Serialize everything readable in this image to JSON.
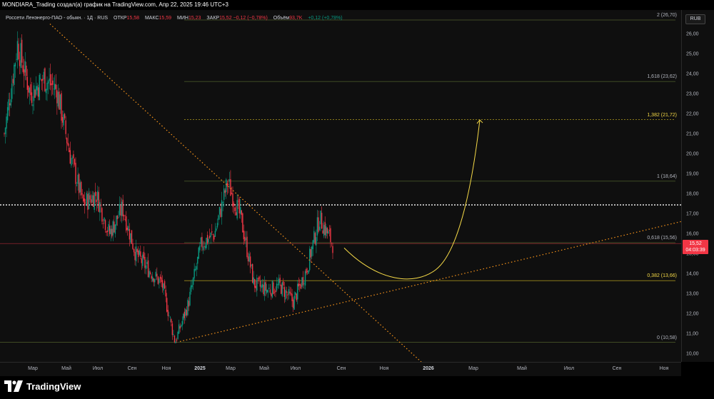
{
  "header": {
    "title": "MONDIARA_Trading создал(а) график на TradingView.com, Апр 22, 2025 19:46 UTC+3"
  },
  "legend": {
    "symbol": "Россети Ленэнерго-ПАО - обыкн. · 1Д · RUS",
    "open_label": "ОТКР",
    "open_value": "15,58",
    "high_label": "МАКС",
    "high_value": "15,59",
    "low_label": "МИН",
    "low_value": "15,23",
    "close_label": "ЗАКР",
    "close_value": "15,52",
    "change": "−0,12 (−0,78%)",
    "volume_label": "Объём",
    "volume_value": "93,7K",
    "volume_change": "+0,12 (+0,78%)"
  },
  "currency": "RUB",
  "price_badge": {
    "price": "15,52",
    "countdown": "04:03:39",
    "color": "#f23645"
  },
  "fib_levels": [
    {
      "label": "2 (26,70)",
      "price": 26.7,
      "highlight": false
    },
    {
      "label": "1,618 (23,62)",
      "price": 23.62,
      "highlight": false
    },
    {
      "label": "1,382 (21,72)",
      "price": 21.72,
      "highlight": true
    },
    {
      "label": "1 (18,64)",
      "price": 18.64,
      "highlight": false
    },
    {
      "label": "0,618 (15,56)",
      "price": 15.56,
      "highlight": false
    },
    {
      "label": "0,382 (13,66)",
      "price": 13.66,
      "highlight": true
    },
    {
      "label": "0 (10,58)",
      "price": 10.58,
      "highlight": false
    }
  ],
  "horizontal_line_price": 17.45,
  "price_ticks": [
    "26,00",
    "25,00",
    "24,00",
    "23,00",
    "22,00",
    "21,00",
    "20,00",
    "19,00",
    "18,00",
    "17,00",
    "16,00",
    "15,00",
    "14,00",
    "13,00",
    "12,00",
    "11,00",
    "10,00"
  ],
  "time_ticks": [
    {
      "label": "Мар",
      "bold": false
    },
    {
      "label": "Май",
      "bold": false
    },
    {
      "label": "Июл",
      "bold": false
    },
    {
      "label": "Сен",
      "bold": false
    },
    {
      "label": "Ноя",
      "bold": false
    },
    {
      "label": "2025",
      "bold": true
    },
    {
      "label": "Мар",
      "bold": false
    },
    {
      "label": "Май",
      "bold": false
    },
    {
      "label": "Июл",
      "bold": false
    },
    {
      "label": "Сен",
      "bold": false
    },
    {
      "label": "Ноя",
      "bold": false
    },
    {
      "label": "2026",
      "bold": true
    },
    {
      "label": "Мар",
      "bold": false
    },
    {
      "label": "Май",
      "bold": false
    },
    {
      "label": "Июл",
      "bold": false
    },
    {
      "label": "Сен",
      "bold": false
    },
    {
      "label": "Ноя",
      "bold": false
    }
  ],
  "brand": "TradingView",
  "colors": {
    "up": "#089981",
    "down": "#f23645",
    "trendline": "#f7931a",
    "projection": "#f5d947",
    "fib_line": "#4a5a2a"
  },
  "chart_data": {
    "type": "candlestick",
    "symbol": "Россети Ленэнерго-ПАО - обыкн.",
    "interval": "1Д",
    "currency": "RUB",
    "ylim": [
      9.6,
      27.2
    ],
    "approximate_path": [
      {
        "t": "2024-02",
        "close": 21.0
      },
      {
        "t": "2024-02-mid",
        "close": 25.5
      },
      {
        "t": "2024-03",
        "close": 23.0
      },
      {
        "t": "2024-04",
        "close": 23.8
      },
      {
        "t": "2024-05",
        "close": 23.2
      },
      {
        "t": "2024-06",
        "close": 20.0
      },
      {
        "t": "2024-06-mid",
        "close": 17.5
      },
      {
        "t": "2024-07",
        "close": 18.0
      },
      {
        "t": "2024-08",
        "close": 16.0
      },
      {
        "t": "2024-08-mid",
        "close": 17.3
      },
      {
        "t": "2024-09",
        "close": 15.0
      },
      {
        "t": "2024-10",
        "close": 14.2
      },
      {
        "t": "2024-11",
        "close": 13.5
      },
      {
        "t": "2024-12",
        "close": 10.6
      },
      {
        "t": "2024-12-end",
        "close": 12.5
      },
      {
        "t": "2025-01",
        "close": 15.5
      },
      {
        "t": "2025-02",
        "close": 16.0
      },
      {
        "t": "2025-02-end",
        "close": 18.6
      },
      {
        "t": "2025-03",
        "close": 16.8
      },
      {
        "t": "2025-04",
        "close": 13.5
      },
      {
        "t": "2025-05",
        "close": 13.2
      },
      {
        "t": "2025-06",
        "close": 13.4
      },
      {
        "t": "2025-07",
        "close": 12.6
      },
      {
        "t": "2025-08",
        "close": 14.2
      },
      {
        "t": "2025-08-end",
        "close": 16.8
      },
      {
        "t": "2025-09",
        "close": 15.5
      }
    ]
  }
}
